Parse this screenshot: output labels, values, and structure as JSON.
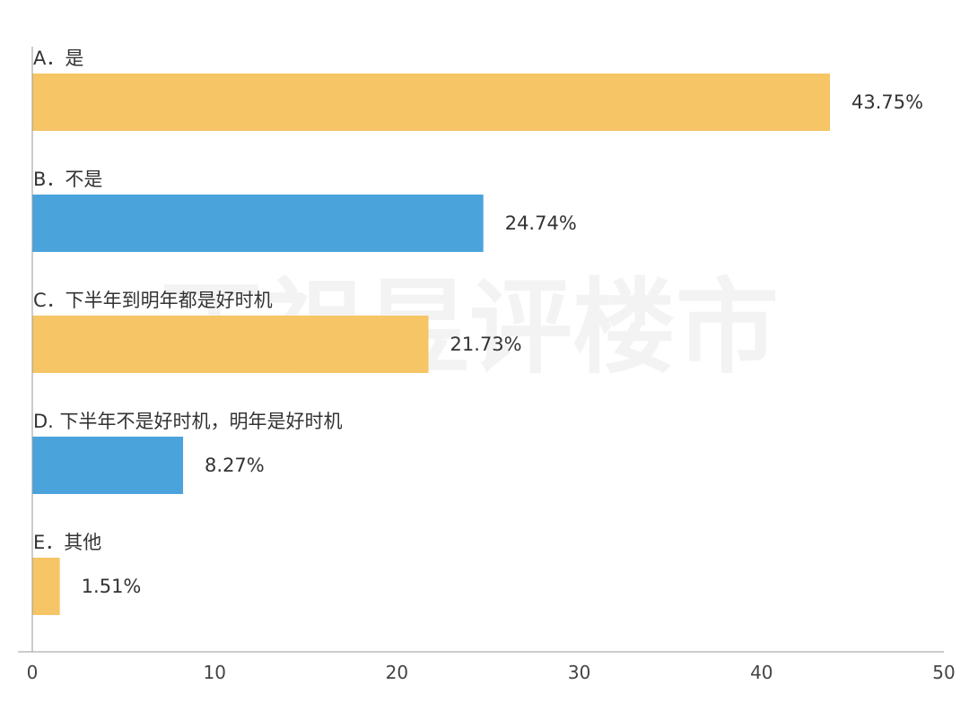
{
  "chart_data": {
    "type": "bar",
    "orientation": "horizontal",
    "categories": [
      "A．是",
      "B．不是",
      "C．下半年到明年都是好时机",
      "D. 下半年不是好时机，明年是好时机",
      "E．其他"
    ],
    "values": [
      43.75,
      24.74,
      21.73,
      8.27,
      1.51
    ],
    "value_labels": [
      "43.75%",
      "24.74%",
      "21.73%",
      "8.27%",
      "1.51%"
    ],
    "bar_colors": [
      "#F5C566",
      "#4BA3DC",
      "#F5C566",
      "#4BA3DC",
      "#F5C566"
    ],
    "xlim": [
      0,
      50
    ],
    "x_ticks": [
      0,
      10,
      20,
      30,
      40,
      50
    ],
    "x_tick_labels": [
      "0",
      "10",
      "20",
      "30",
      "40",
      "50"
    ],
    "title": "",
    "xlabel": "",
    "ylabel": "",
    "grid": false,
    "legend": "none",
    "watermark": "丁祖昱评楼市"
  }
}
